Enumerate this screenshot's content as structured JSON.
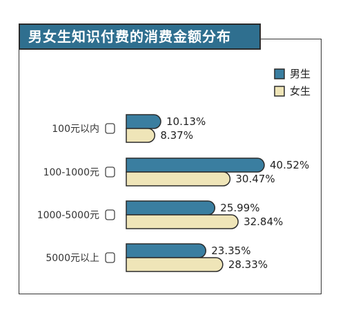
{
  "colors": {
    "male": "#3a7ea0",
    "female": "#efe5b8",
    "outline": "#2b2b2b",
    "title_bg": "#2f6f8f"
  },
  "chart_data": {
    "type": "bar",
    "orientation": "horizontal",
    "title": "男女生知识付费的消费金额分布",
    "categories": [
      "100元以内",
      "100-1000元",
      "1000-5000元",
      "5000元以上"
    ],
    "series": [
      {
        "name": "男生",
        "values": [
          10.13,
          40.52,
          25.99,
          23.35
        ],
        "labels": [
          "10.13%",
          "40.52%",
          "25.99%",
          "23.35%"
        ]
      },
      {
        "name": "女生",
        "values": [
          8.37,
          30.47,
          32.84,
          28.33
        ],
        "labels": [
          "8.37%",
          "30.47%",
          "32.84%",
          "28.33%"
        ]
      }
    ],
    "xlim": [
      0,
      40.52
    ],
    "grid": false,
    "legend_position": "top-right"
  }
}
